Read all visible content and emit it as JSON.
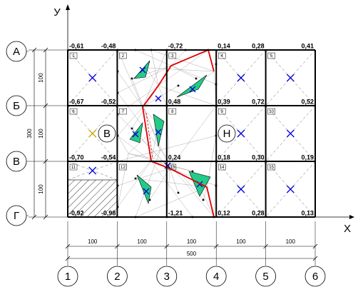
{
  "axes": {
    "y": "У",
    "x": "Х"
  },
  "rows": [
    "А",
    "Б",
    "В",
    "Г"
  ],
  "columns": [
    "1",
    "2",
    "3",
    "4",
    "5",
    "6"
  ],
  "dimensions": {
    "spans": [
      "100",
      "100",
      "100",
      "100",
      "100"
    ],
    "total": "500",
    "row_spans": [
      "100",
      "100",
      "100"
    ],
    "height": "300"
  },
  "levels": [
    [
      "-0,61",
      "-0,48",
      "-0,72",
      "0,14",
      "0,28",
      "0,41"
    ],
    [
      "-0,67",
      "-0,52",
      "0,48",
      "0,39",
      "0,72",
      "0,52"
    ],
    [
      "-0,70",
      "-0,54",
      "0,24",
      "0,18",
      "0,30",
      "0,19"
    ],
    [
      "-0,92",
      "-0,98",
      "-1,21",
      "0,12",
      "0,28",
      "0,13"
    ]
  ],
  "cells": [
    "1",
    "2",
    "3",
    "4",
    "5",
    "6",
    "7",
    "8",
    "9",
    "10",
    "11",
    "12",
    "13",
    "14",
    "15"
  ],
  "zones": [
    "В",
    "Н"
  ]
}
